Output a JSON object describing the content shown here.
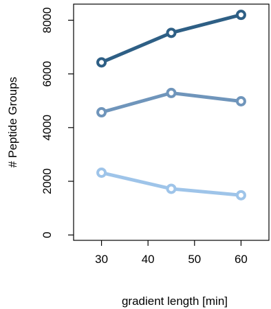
{
  "chart_data": {
    "type": "line",
    "title": "",
    "xlabel": "gradient length [min]",
    "ylabel": "# Peptide Groups",
    "xlim": [
      24,
      66
    ],
    "ylim": [
      -200,
      8600
    ],
    "x_ticks": [
      30,
      40,
      50,
      60
    ],
    "y_ticks": [
      0,
      2000,
      4000,
      6000,
      8000
    ],
    "grid": false,
    "legend": "none",
    "x": [
      30,
      45,
      60
    ],
    "series": [
      {
        "color": "#2e5f85",
        "values": [
          6430,
          7530,
          8200
        ]
      },
      {
        "color": "#6f95bb",
        "values": [
          4570,
          5290,
          4980
        ]
      },
      {
        "color": "#9ec4e9",
        "values": [
          2320,
          1720,
          1480
        ]
      }
    ]
  }
}
